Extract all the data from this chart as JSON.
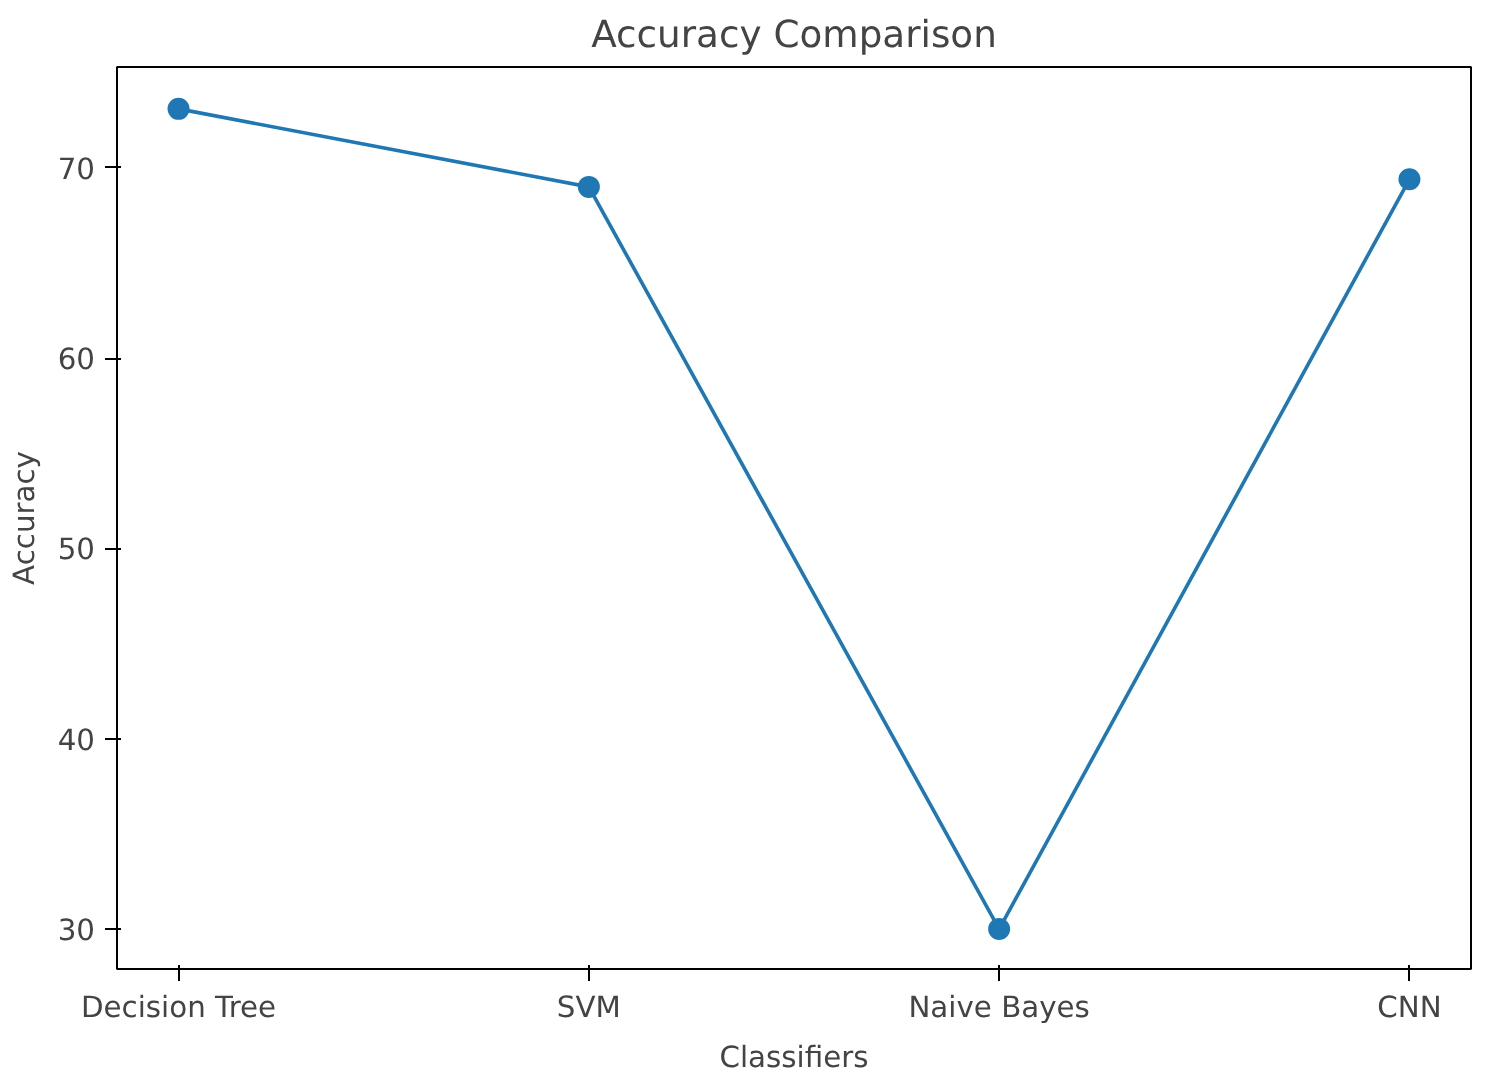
{
  "chart_data": {
    "type": "line",
    "title": "Accuracy Comparison",
    "xlabel": "Classifiers",
    "ylabel": "Accuracy",
    "categories": [
      "Decision Tree",
      "SVM",
      "Naive Bayes",
      "CNN"
    ],
    "series": [
      {
        "color": "#1f77b4",
        "values": [
          73.1,
          69.0,
          30.0,
          69.4
        ]
      }
    ],
    "ylim": [
      27.9,
      75.3
    ],
    "yticks": [
      30,
      40,
      50,
      60,
      70
    ],
    "grid": false,
    "marker": "circle",
    "line_style": "solid"
  }
}
